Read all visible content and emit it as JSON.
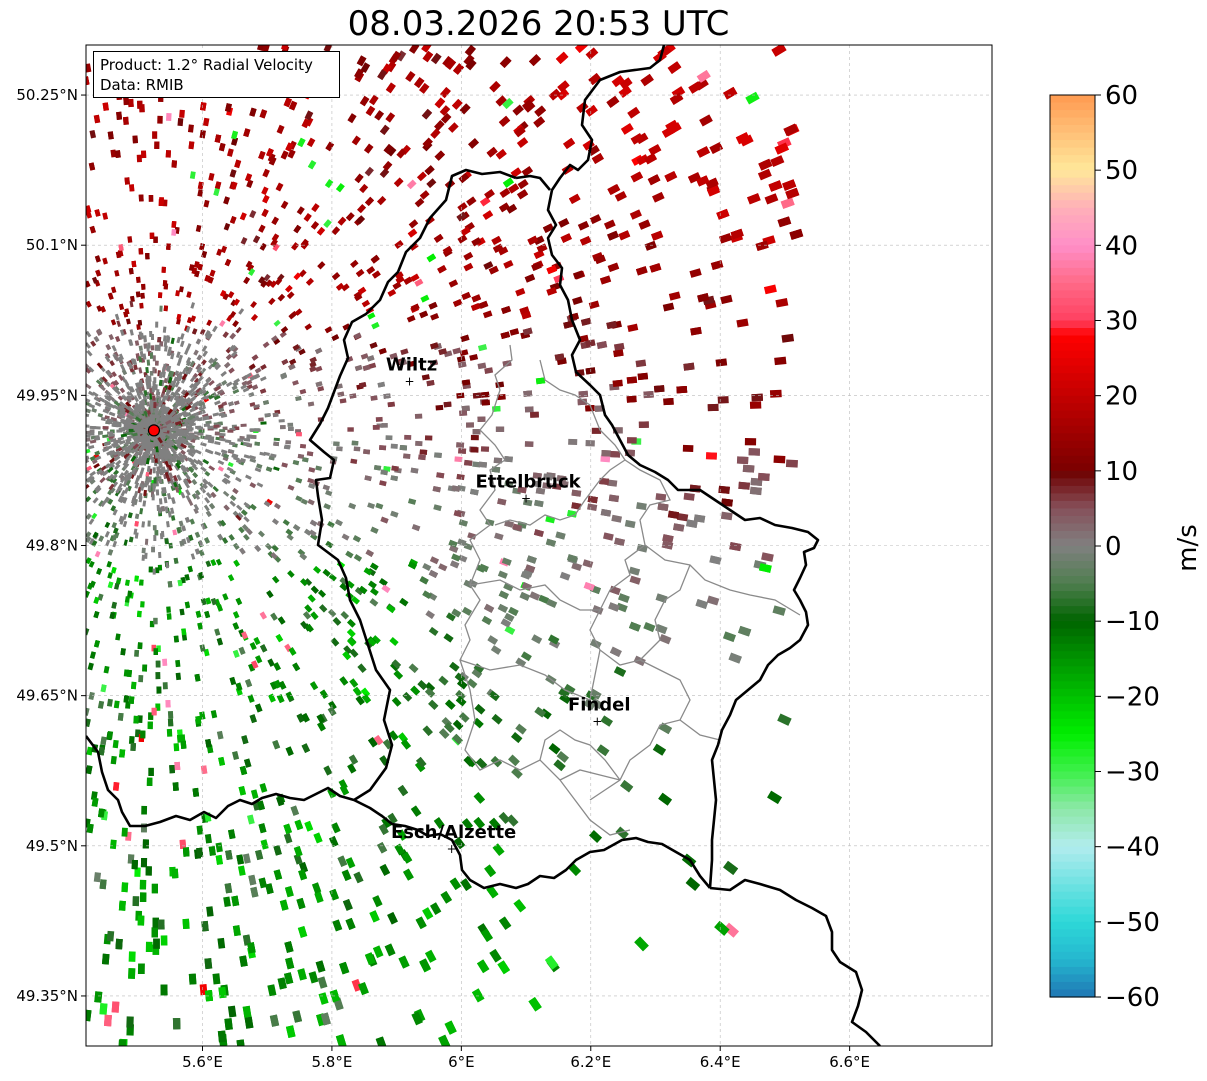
{
  "title": "08.03.2026 20:53 UTC",
  "info": {
    "product": "Product: 1.2° Radial Velocity",
    "data": "Data: RMIB"
  },
  "map": {
    "lon_range": [
      5.42,
      6.82
    ],
    "lat_range": [
      49.3,
      50.3
    ],
    "lon_ticks": [
      {
        "v": 5.6,
        "label": "5.6°E"
      },
      {
        "v": 5.8,
        "label": "5.8°E"
      },
      {
        "v": 6.0,
        "label": "6°E"
      },
      {
        "v": 6.2,
        "label": "6.2°E"
      },
      {
        "v": 6.4,
        "label": "6.4°E"
      },
      {
        "v": 6.6,
        "label": "6.6°E"
      }
    ],
    "lat_ticks": [
      {
        "v": 49.35,
        "label": "49.35°N"
      },
      {
        "v": 49.5,
        "label": "49.5°N"
      },
      {
        "v": 49.65,
        "label": "49.65°N"
      },
      {
        "v": 49.8,
        "label": "49.8°N"
      },
      {
        "v": 49.95,
        "label": "49.95°N"
      },
      {
        "v": 50.1,
        "label": "50.1°N"
      },
      {
        "v": 50.25,
        "label": "50.25°N"
      }
    ],
    "radar_site": {
      "lon": 5.525,
      "lat": 49.915
    },
    "cities": [
      {
        "name": "Wiltz",
        "lon": 5.92,
        "lat": 49.965
      },
      {
        "name": "Ettelbruck",
        "lon": 6.1,
        "lat": 49.848
      },
      {
        "name": "Findel",
        "lon": 6.21,
        "lat": 49.625
      },
      {
        "name": "Esch/Alzette",
        "lon": 5.985,
        "lat": 49.498
      }
    ]
  },
  "colorbar": {
    "label": "m/s",
    "vmin": -60,
    "vmax": 60,
    "ticks": [
      {
        "v": 60,
        "label": "60"
      },
      {
        "v": 50,
        "label": "50"
      },
      {
        "v": 40,
        "label": "40"
      },
      {
        "v": 30,
        "label": "30"
      },
      {
        "v": 20,
        "label": "20"
      },
      {
        "v": 10,
        "label": "10"
      },
      {
        "v": 0,
        "label": "0"
      },
      {
        "v": -10,
        "label": "−10"
      },
      {
        "v": -20,
        "label": "−20"
      },
      {
        "v": -30,
        "label": "−30"
      },
      {
        "v": -40,
        "label": "−40"
      },
      {
        "v": -50,
        "label": "−50"
      },
      {
        "v": -60,
        "label": "−60"
      }
    ],
    "stops": [
      {
        "v": -60,
        "c": "#1f77b4"
      },
      {
        "v": -55,
        "c": "#25b7cf"
      },
      {
        "v": -50,
        "c": "#2dd8d8"
      },
      {
        "v": -45,
        "c": "#6fe2e2"
      },
      {
        "v": -40,
        "c": "#b2ecee"
      },
      {
        "v": -35,
        "c": "#8de8a8"
      },
      {
        "v": -30,
        "c": "#3df04a"
      },
      {
        "v": -25,
        "c": "#00ee00"
      },
      {
        "v": -20,
        "c": "#00c000"
      },
      {
        "v": -15,
        "c": "#009400"
      },
      {
        "v": -10,
        "c": "#006400"
      },
      {
        "v": -5,
        "c": "#4f7e4f"
      },
      {
        "v": 0,
        "c": "#808080"
      },
      {
        "v": 5,
        "c": "#86505a"
      },
      {
        "v": 9.9,
        "c": "#6e0000"
      },
      {
        "v": 10,
        "c": "#7a0000"
      },
      {
        "v": 20,
        "c": "#c40000"
      },
      {
        "v": 28,
        "c": "#ff0000"
      },
      {
        "v": 30,
        "c": "#ff4060"
      },
      {
        "v": 35,
        "c": "#ff6a88"
      },
      {
        "v": 40,
        "c": "#ff8fc8"
      },
      {
        "v": 45,
        "c": "#ffb0b8"
      },
      {
        "v": 50,
        "c": "#ffe89a"
      },
      {
        "v": 55,
        "c": "#ffc078"
      },
      {
        "v": 60,
        "c": "#ff9a50"
      }
    ]
  },
  "colors": {
    "border_national": "#000000",
    "border_canton": "#8a8a8a",
    "grid": "#bbbbbb",
    "radar_marker": "#ff0000"
  }
}
